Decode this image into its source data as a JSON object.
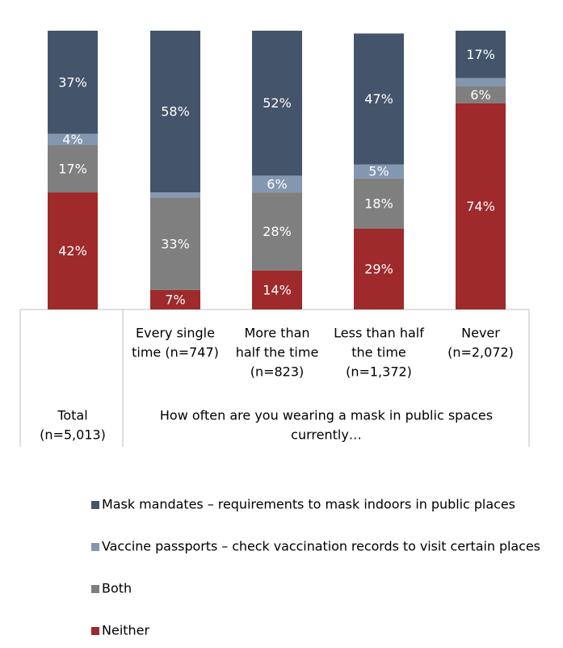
{
  "chart_data": {
    "type": "stacked_bar",
    "categories": [
      [
        "Total",
        "(n=5,013)"
      ],
      [
        "Every single",
        "time (n=747)"
      ],
      [
        "More than",
        "half the time",
        "(n=823)"
      ],
      [
        "Less than half",
        "the time",
        "(n=1,372)"
      ],
      [
        "Never",
        "(n=2,072)"
      ]
    ],
    "group_label": [
      "How often are you wearing a mask in public spaces",
      "currently…"
    ],
    "ylim": [
      0,
      100
    ],
    "series": [
      {
        "name": "Mask mandates – requirements to mask indoors in public places",
        "color": "#44546a",
        "values": [
          37,
          58,
          52,
          47,
          17
        ],
        "value_labels": [
          "37%",
          "58%",
          "52%",
          "47%",
          "17%"
        ]
      },
      {
        "name": "Vaccine passports – check vaccination records to visit certain places",
        "color": "#8497b0",
        "values": [
          4,
          2,
          6,
          5,
          3
        ],
        "value_labels": [
          "4%",
          null,
          "6%",
          "5%",
          null
        ]
      },
      {
        "name": "Both",
        "color": "#7f7f7f",
        "values": [
          17,
          33,
          28,
          18,
          6
        ],
        "value_labels": [
          "17%",
          "33%",
          "28%",
          "18%",
          "6%"
        ]
      },
      {
        "name": "Neither",
        "color": "#9e2a2b",
        "values": [
          42,
          7,
          14,
          29,
          74
        ],
        "value_labels": [
          "42%",
          "7%",
          "14%",
          "29%",
          "74%"
        ]
      }
    ]
  }
}
